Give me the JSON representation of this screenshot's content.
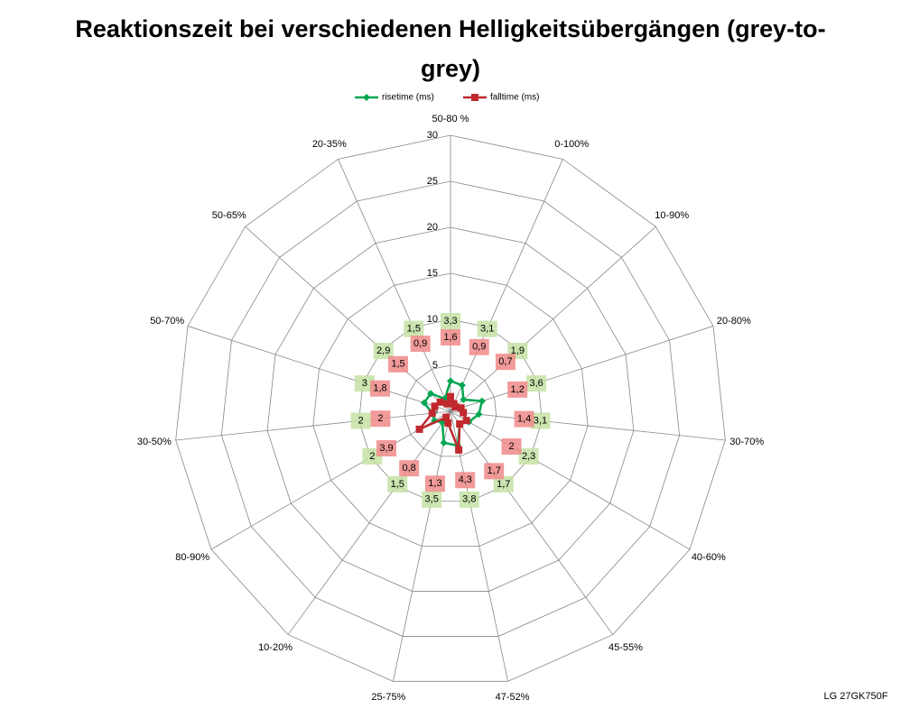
{
  "chart_data": {
    "type": "radar",
    "title": "Reaktionszeit bei verschiedenen Helligkeitsübergängen (grey-to-grey)",
    "categories": [
      "50-80 %",
      "0-100%",
      "10-90%",
      "20-80%",
      "30-70%",
      "40-60%",
      "45-55%",
      "47-52%",
      "25-75%",
      "10-20%",
      "80-90%",
      "30-50%",
      "50-70%",
      "50-65%",
      "20-35%"
    ],
    "series": [
      {
        "name": "risetime (ms)",
        "color": "#00a650",
        "label_color": "#c4e2a4",
        "values": [
          3.3,
          3.1,
          1.9,
          3.6,
          3.1,
          2.3,
          1.7,
          3.8,
          3.5,
          1.5,
          2,
          2,
          3,
          2.9,
          1.5
        ],
        "value_labels": [
          "3,3",
          "3,1",
          "1,9",
          "3,6",
          "3,1",
          "2,3",
          "1,7",
          "3,8",
          "3,5",
          "1,5",
          "2",
          "2",
          "3",
          "2,9",
          "1,5"
        ]
      },
      {
        "name": "falltime (ms)",
        "color": "#c0282d",
        "label_color": "#f08a8a",
        "values": [
          1.6,
          0.9,
          0.7,
          1.2,
          1.4,
          2,
          1.7,
          4.3,
          1.3,
          0.8,
          3.9,
          2,
          1.8,
          1.5,
          0.9
        ],
        "value_labels": [
          "1,6",
          "0,9",
          "0,7",
          "1,2",
          "1,4",
          "2",
          "1,7",
          "4,3",
          "1,3",
          "0,8",
          "3,9",
          "2",
          "1,8",
          "1,5",
          "0,9"
        ]
      }
    ],
    "ylim": [
      0,
      30
    ],
    "yticks": [
      0,
      5,
      10,
      15,
      20,
      25,
      30
    ],
    "grid": true,
    "legend": "top",
    "footnote": "LG 27GK750F"
  }
}
